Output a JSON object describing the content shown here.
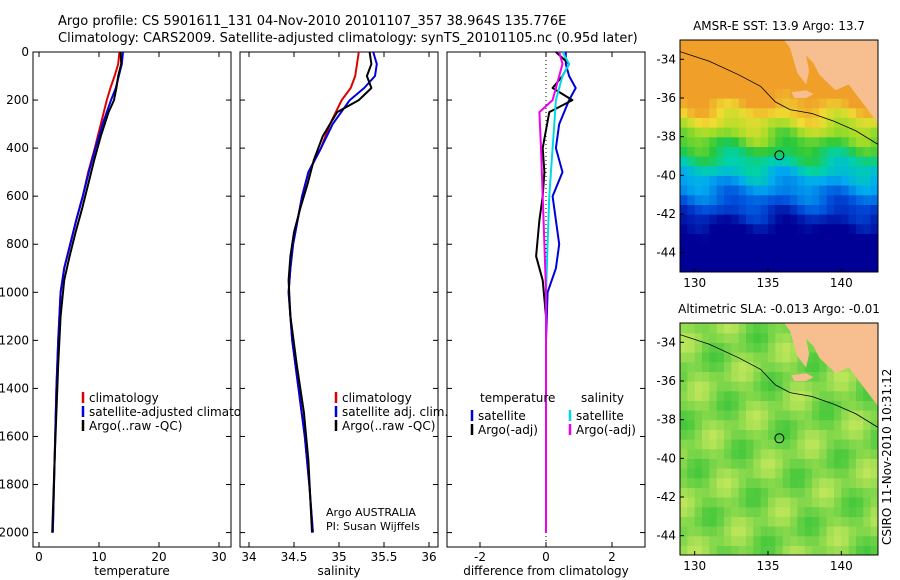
{
  "header": {
    "line1": "Argo profile: CS 5901611_131 04-Nov-2010 20101107_357 38.964S 135.776E",
    "line2": "Climatology: CARS2009. Satellite-adjusted climatology: synTS_20101105.nc (0.95d later)"
  },
  "colors": {
    "climatology": "#e00000",
    "satellite": "#0000dd",
    "argo": "#000000",
    "sat_salinity": "#00d8e8",
    "argo_salinity": "#ee00ee",
    "land": "#f7bf8f"
  },
  "chart_data": [
    {
      "type": "line",
      "name": "temperature",
      "xlabel": "temperature",
      "xlim": [
        -1,
        32
      ],
      "xticks": [
        "0",
        "10",
        "20",
        "30"
      ],
      "xtick_values": [
        0,
        10,
        20,
        30
      ],
      "ylim": [
        2060,
        0
      ],
      "yticks": [
        "0",
        "200",
        "400",
        "600",
        "800",
        "1000",
        "1200",
        "1400",
        "1600",
        "1800",
        "2000"
      ],
      "ytick_values": [
        0,
        200,
        400,
        600,
        800,
        1000,
        1200,
        1400,
        1600,
        1800,
        2000
      ],
      "legend": [
        "climatology",
        "satellite-adjusted climatology",
        "Argo(..raw -QC)"
      ],
      "series": [
        {
          "name": "climatology",
          "color": "#e00000",
          "x": [
            13.4,
            13.2,
            12.6,
            11.9,
            11.3,
            10.3,
            9.3,
            8.2,
            7.3,
            6.2,
            5.2,
            4.2,
            3.6,
            3.2,
            2.9,
            2.7,
            2.5,
            2.4,
            2.3
          ],
          "y": [
            0,
            50,
            100,
            150,
            200,
            300,
            400,
            500,
            600,
            700,
            800,
            900,
            1000,
            1200,
            1400,
            1600,
            1800,
            1900,
            2000
          ]
        },
        {
          "name": "satellite-adjusted climatology",
          "color": "#0000dd",
          "x": [
            14.0,
            13.8,
            13.3,
            12.8,
            12.0,
            10.6,
            9.4,
            8.3,
            7.3,
            6.2,
            5.2,
            4.2,
            3.6,
            3.2,
            2.9,
            2.7,
            2.5,
            2.4,
            2.3
          ],
          "y": [
            0,
            50,
            100,
            150,
            200,
            300,
            400,
            500,
            600,
            700,
            800,
            900,
            1000,
            1200,
            1400,
            1600,
            1800,
            1900,
            2000
          ]
        },
        {
          "name": "Argo(..raw -QC)",
          "color": "#000000",
          "x": [
            13.6,
            13.7,
            13.2,
            12.9,
            12.5,
            11.6,
            10.3,
            9.2,
            8.2,
            7.2,
            6.1,
            5.1,
            4.2,
            3.6,
            3.2,
            2.9,
            2.6,
            2.4,
            2.2
          ],
          "y": [
            0,
            50,
            100,
            150,
            200,
            250,
            350,
            450,
            550,
            650,
            750,
            850,
            950,
            1100,
            1300,
            1500,
            1700,
            1850,
            2000
          ]
        }
      ]
    },
    {
      "type": "line",
      "name": "salinity",
      "xlabel": "salinity",
      "xlim": [
        33.9,
        36.1
      ],
      "xticks": [
        "34",
        "34.5",
        "35",
        "35.5",
        "36"
      ],
      "xtick_values": [
        34,
        34.5,
        35,
        35.5,
        36
      ],
      "ylim": [
        2060,
        0
      ],
      "legend": [
        "climatology",
        "satellite adj. clim.",
        "Argo(..raw -QC)"
      ],
      "annotation": [
        "Argo AUSTRALIA",
        "PI: Susan Wijffels"
      ],
      "series": [
        {
          "name": "climatology",
          "color": "#e00000",
          "x": [
            35.22,
            35.2,
            35.18,
            35.13,
            35.03,
            34.9,
            34.8,
            34.66,
            34.59,
            34.54,
            34.49,
            34.46,
            34.44,
            34.48,
            34.55,
            34.62,
            34.67,
            34.69,
            34.71
          ],
          "y": [
            0,
            50,
            100,
            150,
            200,
            300,
            400,
            500,
            600,
            700,
            800,
            900,
            1000,
            1200,
            1400,
            1600,
            1800,
            1900,
            2000
          ]
        },
        {
          "name": "satellite adj. clim.",
          "color": "#0000dd",
          "x": [
            35.38,
            35.42,
            35.4,
            35.28,
            35.12,
            34.93,
            34.8,
            34.66,
            34.59,
            34.54,
            34.49,
            34.46,
            34.44,
            34.48,
            34.55,
            34.62,
            34.67,
            34.69,
            34.71
          ],
          "y": [
            0,
            50,
            100,
            150,
            200,
            300,
            400,
            500,
            600,
            700,
            800,
            900,
            1000,
            1200,
            1400,
            1600,
            1800,
            1900,
            2000
          ]
        },
        {
          "name": "Argo(..raw -QC)",
          "color": "#000000",
          "x": [
            35.34,
            35.36,
            35.31,
            35.36,
            35.22,
            34.98,
            34.82,
            34.72,
            34.65,
            34.57,
            34.5,
            34.46,
            34.44,
            34.46,
            34.53,
            34.61,
            34.66,
            34.68,
            34.7
          ],
          "y": [
            0,
            50,
            100,
            150,
            200,
            250,
            350,
            450,
            550,
            650,
            750,
            850,
            950,
            1100,
            1300,
            1500,
            1700,
            1850,
            2000
          ]
        }
      ]
    },
    {
      "type": "line",
      "name": "difference",
      "xlabel": "difference from climatology",
      "xlim": [
        -3,
        3
      ],
      "xticks": [
        "-2",
        "0",
        "2"
      ],
      "xtick_values": [
        -2,
        0,
        2
      ],
      "ylim": [
        2060,
        0
      ],
      "legend_groups": [
        {
          "title": "temperature",
          "items": [
            "satellite",
            "Argo(-adj)"
          ]
        },
        {
          "title": "salinity",
          "items": [
            "satellite",
            "Argo(-adj)"
          ]
        }
      ],
      "series": [
        {
          "name": "temperature satellite",
          "color": "#0000dd",
          "x": [
            0.6,
            0.6,
            0.7,
            0.9,
            0.7,
            0.4,
            0.3,
            0.5,
            0.2,
            0.3,
            0.4,
            0.3,
            0.05,
            0,
            0,
            0
          ],
          "y": [
            0,
            50,
            100,
            150,
            200,
            300,
            400,
            500,
            600,
            700,
            800,
            900,
            1000,
            1200,
            1600,
            2000
          ]
        },
        {
          "name": "temperature Argo(-adj)",
          "color": "#000000",
          "x": [
            0.3,
            0.7,
            0.5,
            0.2,
            0.8,
            0.1,
            -0.1,
            -0.05,
            -0.1,
            -0.2,
            -0.3,
            -0.1,
            0,
            0
          ],
          "y": [
            0,
            50,
            100,
            150,
            200,
            250,
            400,
            500,
            600,
            700,
            850,
            950,
            1100,
            2000
          ]
        },
        {
          "name": "salinity satellite",
          "color": "#00d8e8",
          "x": [
            0.5,
            0.7,
            0.5,
            0.4,
            0.3,
            0.25,
            0.2,
            0.1,
            0.05,
            0,
            0
          ],
          "y": [
            0,
            50,
            100,
            150,
            200,
            300,
            400,
            600,
            800,
            1000,
            2000
          ]
        },
        {
          "name": "salinity Argo(-adj)",
          "color": "#ee00ee",
          "x": [
            0.4,
            0.5,
            0.4,
            0.3,
            0.2,
            -0.2,
            -0.15,
            -0.1,
            -0.05,
            0,
            0
          ],
          "y": [
            0,
            50,
            100,
            150,
            200,
            250,
            400,
            600,
            800,
            1000,
            2000
          ]
        }
      ]
    },
    {
      "type": "heatmap",
      "name": "sst-map",
      "title": "AMSR-E SST: 13.9 Argo: 13.7",
      "xlim": [
        129,
        142.5
      ],
      "ylim": [
        -45,
        -33
      ],
      "xticks": [
        "130",
        "135",
        "140"
      ],
      "xtick_values": [
        130,
        135,
        140
      ],
      "yticks": [
        "-34",
        "-36",
        "-38",
        "-40",
        "-42",
        "-44"
      ],
      "ytick_values": [
        -34,
        -36,
        -38,
        -40,
        -42,
        -44
      ],
      "marker": {
        "lon": 135.776,
        "lat": -38.964
      }
    },
    {
      "type": "heatmap",
      "name": "sla-map",
      "title": "Altimetric SLA: -0.013 Argo: -0.01",
      "xlim": [
        129,
        142.5
      ],
      "ylim": [
        -45,
        -33
      ],
      "xticks": [
        "130",
        "135",
        "140"
      ],
      "xtick_values": [
        130,
        135,
        140
      ],
      "yticks": [
        "-34",
        "-36",
        "-38",
        "-40",
        "-42",
        "-44"
      ],
      "ytick_values": [
        -34,
        -36,
        -38,
        -40,
        -42,
        -44
      ],
      "marker": {
        "lon": 135.776,
        "lat": -38.964
      }
    }
  ],
  "footer": {
    "stamp": "CSIRO 11-Nov-2010 10:31:12"
  }
}
